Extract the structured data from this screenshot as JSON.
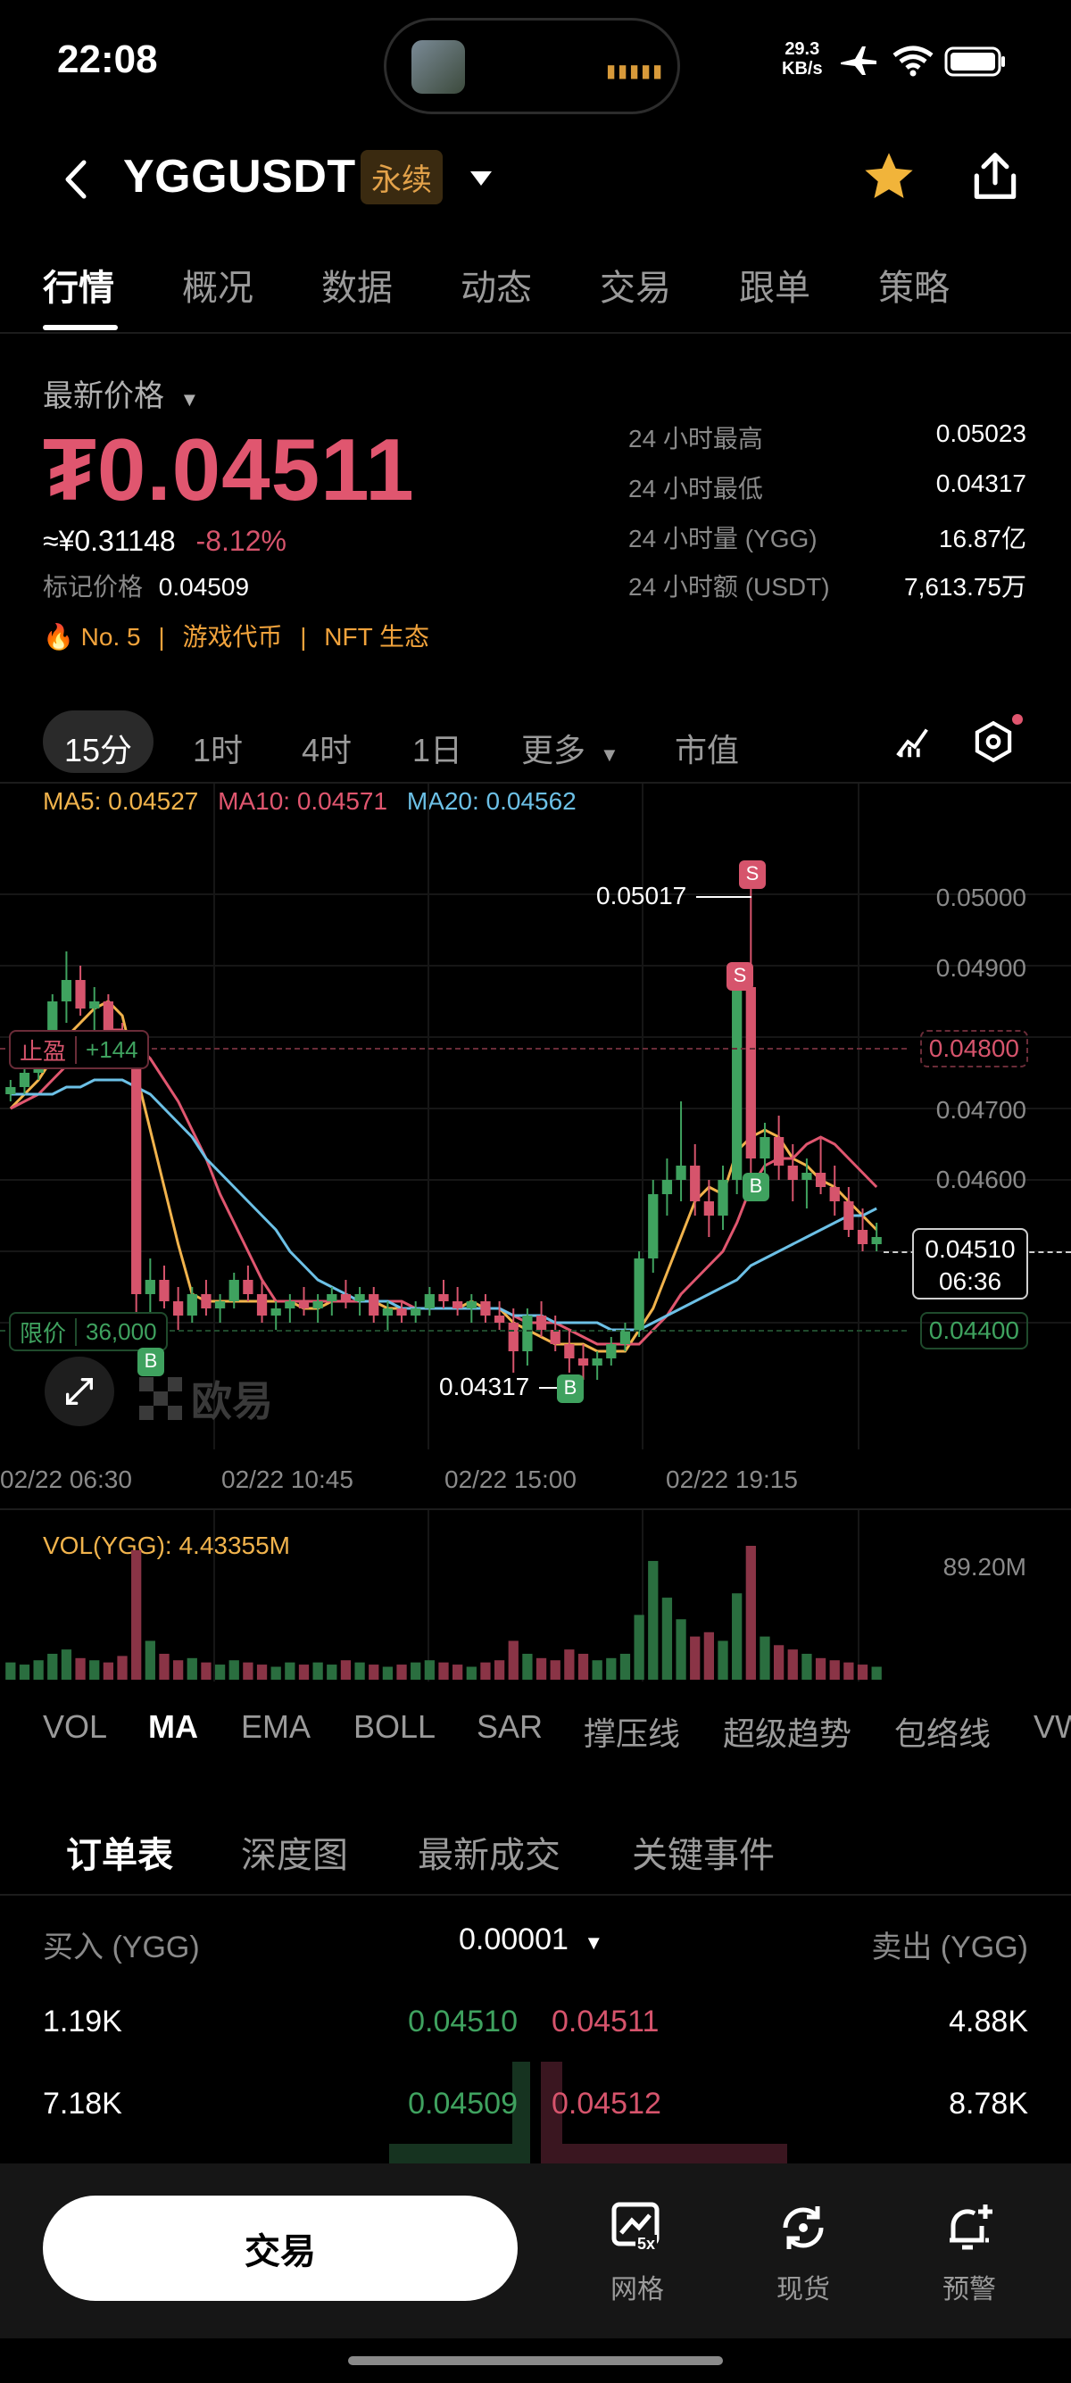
{
  "status_bar": {
    "time": "22:08",
    "net_speed": "29.3",
    "net_unit": "KB/s"
  },
  "header": {
    "symbol": "YGGUSDT",
    "contract_tag": "永续"
  },
  "tabs": [
    "行情",
    "概况",
    "数据",
    "动态",
    "交易",
    "跟单",
    "策略"
  ],
  "price_panel": {
    "price_type_label": "最新价格",
    "last_price": "₮0.04511",
    "cny_price": "≈¥0.31148",
    "change_pct": "-8.12%",
    "mark_label": "标记价格",
    "mark_price": "0.04509",
    "rank": "No. 5",
    "category1": "游戏代币",
    "category2": "NFT 生态",
    "stats": [
      {
        "label": "24 小时最高",
        "value": "0.05023"
      },
      {
        "label": "24 小时最低",
        "value": "0.04317"
      },
      {
        "label": "24 小时量 (YGG)",
        "value": "16.87亿"
      },
      {
        "label": "24 小时额 (USDT)",
        "value": "7,613.75万"
      }
    ]
  },
  "intervals": [
    "15分",
    "1时",
    "4时",
    "1日",
    "更多",
    "市值"
  ],
  "ma_legend": {
    "ma5": "MA5: 0.04527",
    "ma10": "MA10: 0.04571",
    "ma20": "MA20: 0.04562"
  },
  "chart_labels": {
    "high_marker": "0.05017",
    "low_marker": "0.04317",
    "take_profit_label": "止盈",
    "take_profit_value": "+144",
    "take_profit_price": "0.04800",
    "limit_label": "限价",
    "limit_value": "36,000",
    "limit_price": "0.04400",
    "current_price": "0.04510",
    "countdown": "06:36",
    "watermark": "欧易",
    "volume_label": "VOL(YGG): 4.43355M",
    "volume_max": "89.20M",
    "buy_marker": "B",
    "sell_marker": "S"
  },
  "colors": {
    "up": "#3fa25f",
    "down": "#d6546c",
    "ma5": "#f1b34c",
    "ma10": "#e0566f",
    "ma20": "#6cc0e6",
    "accent": "#f1a33c"
  },
  "chart_data": {
    "type": "line",
    "title": "",
    "ylabel": "",
    "xlabel": "",
    "y_ticks": [
      "0.05000",
      "0.04900",
      "0.04700",
      "0.04600"
    ],
    "x_ticks": [
      "02/22 06:30",
      "02/22 10:45",
      "02/22 15:00",
      "02/22 19:15"
    ],
    "ylim": [
      0.0428,
      0.0508
    ],
    "grid": true,
    "candles": [
      [
        0.0472,
        0.0474,
        0.0471,
        0.0473
      ],
      [
        0.0473,
        0.0476,
        0.0472,
        0.0475
      ],
      [
        0.0475,
        0.0479,
        0.0474,
        0.0478
      ],
      [
        0.0478,
        0.0486,
        0.0477,
        0.0485
      ],
      [
        0.0485,
        0.0492,
        0.0482,
        0.0488
      ],
      [
        0.0488,
        0.049,
        0.0483,
        0.0484
      ],
      [
        0.0484,
        0.0487,
        0.0481,
        0.0485
      ],
      [
        0.0485,
        0.0486,
        0.0479,
        0.0481
      ],
      [
        0.0481,
        0.0482,
        0.0478,
        0.0479
      ],
      [
        0.0479,
        0.048,
        0.0441,
        0.0444
      ],
      [
        0.0444,
        0.0449,
        0.044,
        0.0446
      ],
      [
        0.0446,
        0.0448,
        0.0442,
        0.0443
      ],
      [
        0.0443,
        0.0445,
        0.0439,
        0.0441
      ],
      [
        0.0441,
        0.0445,
        0.044,
        0.0444
      ],
      [
        0.0444,
        0.0446,
        0.0441,
        0.0442
      ],
      [
        0.0442,
        0.0444,
        0.044,
        0.0443
      ],
      [
        0.0443,
        0.0447,
        0.0442,
        0.0446
      ],
      [
        0.0446,
        0.0448,
        0.0443,
        0.0444
      ],
      [
        0.0444,
        0.0446,
        0.044,
        0.0441
      ],
      [
        0.0441,
        0.0443,
        0.0439,
        0.0442
      ],
      [
        0.0442,
        0.0444,
        0.044,
        0.0443
      ],
      [
        0.0443,
        0.0445,
        0.0441,
        0.0442
      ],
      [
        0.0442,
        0.0444,
        0.044,
        0.0443
      ],
      [
        0.0443,
        0.0445,
        0.0441,
        0.0444
      ],
      [
        0.0444,
        0.0446,
        0.0442,
        0.0443
      ],
      [
        0.0443,
        0.0445,
        0.0441,
        0.0444
      ],
      [
        0.0444,
        0.0445,
        0.044,
        0.0441
      ],
      [
        0.0441,
        0.0443,
        0.0439,
        0.0442
      ],
      [
        0.0442,
        0.0443,
        0.044,
        0.0441
      ],
      [
        0.0441,
        0.0443,
        0.044,
        0.0442
      ],
      [
        0.0442,
        0.0445,
        0.0441,
        0.0444
      ],
      [
        0.0444,
        0.0446,
        0.0442,
        0.0443
      ],
      [
        0.0443,
        0.0445,
        0.0441,
        0.0442
      ],
      [
        0.0442,
        0.0444,
        0.044,
        0.0443
      ],
      [
        0.0443,
        0.0444,
        0.044,
        0.0441
      ],
      [
        0.0441,
        0.0443,
        0.0439,
        0.044
      ],
      [
        0.044,
        0.0442,
        0.0433,
        0.0436
      ],
      [
        0.0436,
        0.0442,
        0.0434,
        0.0441
      ],
      [
        0.0441,
        0.0443,
        0.0438,
        0.0439
      ],
      [
        0.0439,
        0.0441,
        0.0436,
        0.0437
      ],
      [
        0.0437,
        0.0439,
        0.0433,
        0.0435
      ],
      [
        0.0435,
        0.0437,
        0.0432,
        0.0434
      ],
      [
        0.0434,
        0.0436,
        0.0432,
        0.0435
      ],
      [
        0.0435,
        0.0438,
        0.0434,
        0.0437
      ],
      [
        0.0437,
        0.044,
        0.0436,
        0.0439
      ],
      [
        0.0439,
        0.045,
        0.0438,
        0.0449
      ],
      [
        0.0449,
        0.046,
        0.0447,
        0.0458
      ],
      [
        0.0458,
        0.0463,
        0.0455,
        0.046
      ],
      [
        0.046,
        0.0471,
        0.0457,
        0.0462
      ],
      [
        0.0462,
        0.0465,
        0.0455,
        0.0457
      ],
      [
        0.0457,
        0.046,
        0.0452,
        0.0455
      ],
      [
        0.0455,
        0.0462,
        0.0453,
        0.046
      ],
      [
        0.046,
        0.0488,
        0.0458,
        0.0487
      ],
      [
        0.0487,
        0.0502,
        0.0461,
        0.0463
      ],
      [
        0.0463,
        0.0468,
        0.046,
        0.0466
      ],
      [
        0.0466,
        0.0469,
        0.046,
        0.0462
      ],
      [
        0.0462,
        0.0465,
        0.0457,
        0.046
      ],
      [
        0.046,
        0.0463,
        0.0456,
        0.0461
      ],
      [
        0.0461,
        0.0466,
        0.0458,
        0.0459
      ],
      [
        0.0459,
        0.0462,
        0.0455,
        0.0457
      ],
      [
        0.0457,
        0.0459,
        0.0452,
        0.0453
      ],
      [
        0.0453,
        0.0456,
        0.045,
        0.0451
      ],
      [
        0.0451,
        0.0454,
        0.045,
        0.0452
      ]
    ],
    "series": [
      {
        "name": "MA5",
        "values": [
          0.047,
          0.0472,
          0.0474,
          0.0477,
          0.048,
          0.0482,
          0.0484,
          0.0485,
          0.0483,
          0.0475,
          0.0467,
          0.0459,
          0.0451,
          0.0444,
          0.0443,
          0.0443,
          0.0443,
          0.0443,
          0.0443,
          0.0443,
          0.0443,
          0.0442,
          0.0442,
          0.0443,
          0.0443,
          0.0443,
          0.0443,
          0.0442,
          0.0442,
          0.0442,
          0.0442,
          0.0442,
          0.0442,
          0.0443,
          0.0442,
          0.0442,
          0.044,
          0.0439,
          0.0438,
          0.0437,
          0.0437,
          0.0437,
          0.0436,
          0.0436,
          0.0436,
          0.0439,
          0.0442,
          0.0447,
          0.0452,
          0.0457,
          0.0459,
          0.0458,
          0.0464,
          0.0466,
          0.0467,
          0.0466,
          0.0463,
          0.0462,
          0.046,
          0.0459,
          0.0457,
          0.0455,
          0.0453
        ]
      },
      {
        "name": "MA10",
        "values": [
          0.047,
          0.0471,
          0.0472,
          0.0474,
          0.0476,
          0.0478,
          0.048,
          0.0481,
          0.0481,
          0.0479,
          0.0477,
          0.0474,
          0.0471,
          0.0467,
          0.0463,
          0.0458,
          0.0454,
          0.045,
          0.0446,
          0.0443,
          0.0443,
          0.0443,
          0.0443,
          0.0443,
          0.0443,
          0.0443,
          0.0443,
          0.0443,
          0.0443,
          0.0442,
          0.0442,
          0.0442,
          0.0442,
          0.0442,
          0.0442,
          0.0442,
          0.0441,
          0.044,
          0.044,
          0.044,
          0.0439,
          0.0438,
          0.0437,
          0.0437,
          0.0437,
          0.0437,
          0.0439,
          0.0441,
          0.0444,
          0.0446,
          0.0448,
          0.045,
          0.0454,
          0.0459,
          0.0462,
          0.0463,
          0.0463,
          0.0465,
          0.0466,
          0.0465,
          0.0463,
          0.0461,
          0.0459
        ]
      },
      {
        "name": "MA20",
        "values": [
          0.0472,
          0.0472,
          0.0472,
          0.0472,
          0.0473,
          0.0473,
          0.0474,
          0.0474,
          0.0474,
          0.0473,
          0.0472,
          0.047,
          0.0468,
          0.0466,
          0.0463,
          0.0461,
          0.0459,
          0.0457,
          0.0455,
          0.0453,
          0.045,
          0.0448,
          0.0446,
          0.0445,
          0.0444,
          0.0443,
          0.0443,
          0.0443,
          0.0442,
          0.0442,
          0.0442,
          0.0442,
          0.0442,
          0.0442,
          0.0442,
          0.0442,
          0.0441,
          0.0441,
          0.0441,
          0.044,
          0.044,
          0.044,
          0.044,
          0.0439,
          0.0439,
          0.0439,
          0.044,
          0.0441,
          0.0442,
          0.0443,
          0.0444,
          0.0445,
          0.0446,
          0.0448,
          0.0449,
          0.045,
          0.0451,
          0.0452,
          0.0453,
          0.0454,
          0.0455,
          0.0455,
          0.0456
        ]
      }
    ],
    "volumes": [
      8,
      7,
      9,
      12,
      14,
      10,
      9,
      8,
      11,
      60,
      18,
      12,
      9,
      10,
      8,
      7,
      9,
      8,
      7,
      6,
      8,
      7,
      8,
      7,
      9,
      8,
      7,
      6,
      7,
      8,
      9,
      8,
      7,
      6,
      8,
      9,
      18,
      12,
      10,
      9,
      14,
      12,
      9,
      10,
      12,
      30,
      55,
      38,
      28,
      20,
      22,
      18,
      40,
      62,
      20,
      16,
      14,
      12,
      10,
      9,
      8,
      7,
      6
    ]
  },
  "indicators": [
    "VOL",
    "MA",
    "EMA",
    "BOLL",
    "SAR",
    "撑压线",
    "超级趋势",
    "包络线",
    "VW"
  ],
  "order_book": {
    "tabs": [
      "订单表",
      "深度图",
      "最新成交",
      "关键事件"
    ],
    "buy_header": "买入 (YGG)",
    "sell_header": "卖出 (YGG)",
    "tick_size": "0.00001",
    "rows": [
      {
        "bid_qty": "1.19K",
        "bid_price": "0.04510",
        "ask_price": "0.04511",
        "ask_qty": "4.88K"
      },
      {
        "bid_qty": "7.18K",
        "bid_price": "0.04509",
        "ask_price": "0.04512",
        "ask_qty": "8.78K"
      }
    ]
  },
  "bottom_bar": {
    "trade_label": "交易",
    "grid_label": "网格",
    "grid_badge": "5x",
    "spot_label": "现货",
    "alert_label": "预警"
  }
}
